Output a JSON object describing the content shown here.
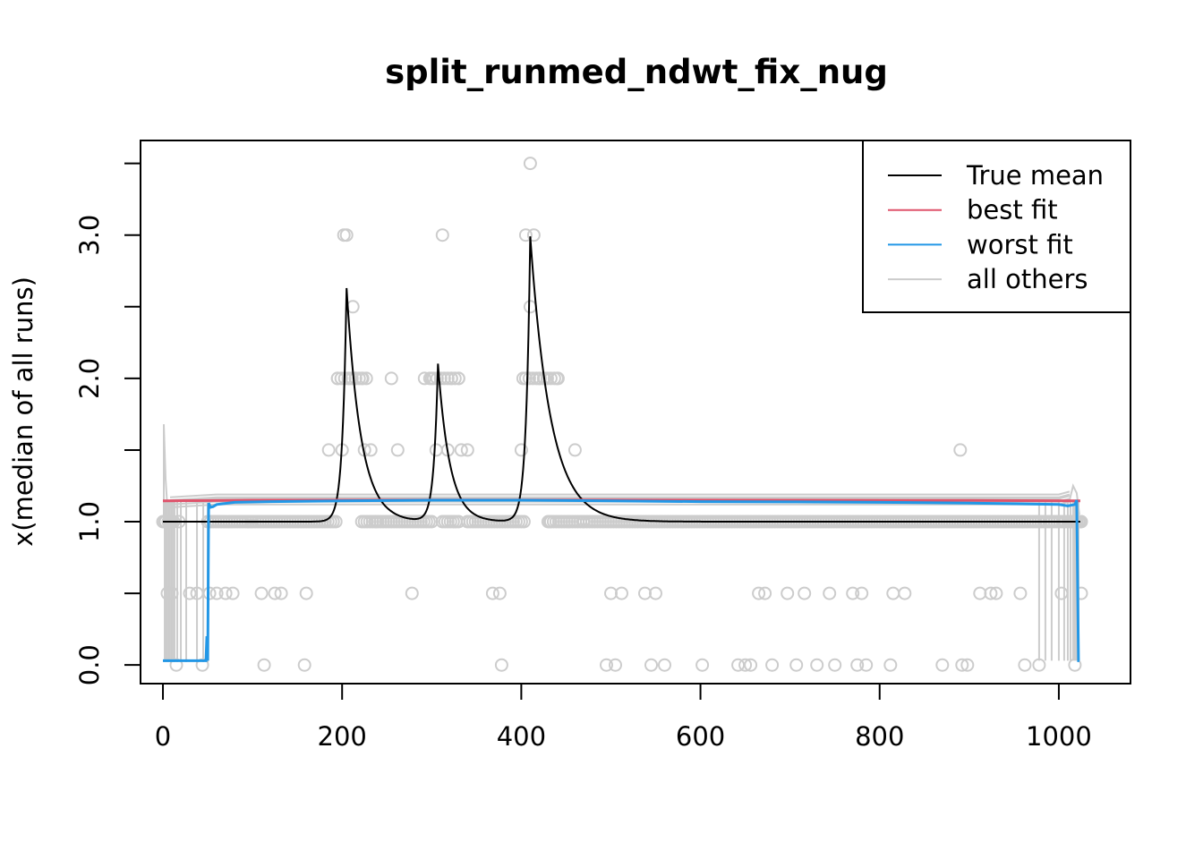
{
  "chart_data": {
    "type": "line",
    "title": "split_runmed_ndwt_fix_nug",
    "xlabel": "",
    "ylabel": "x(median of all runs)",
    "xlim": [
      -25,
      1080
    ],
    "ylim": [
      -0.13,
      3.66
    ],
    "x_ticks": [
      0,
      200,
      400,
      600,
      800,
      1000
    ],
    "x_tick_labels": [
      "0",
      "200",
      "400",
      "600",
      "800",
      "1000"
    ],
    "y_ticks": [
      0.0,
      0.5,
      1.0,
      1.5,
      2.0,
      2.5,
      3.0,
      3.5
    ],
    "y_tick_labels": [
      "0.0",
      "",
      "1.0",
      "",
      "2.0",
      "",
      "3.0",
      ""
    ],
    "legend": {
      "placement": "top-right",
      "entries": [
        {
          "label": "True mean",
          "color": "#000000"
        },
        {
          "label": "best fit",
          "color": "#DF536B"
        },
        {
          "label": "worst fit",
          "color": "#2297E6"
        },
        {
          "label": "all others",
          "color": "#CCCCCC"
        }
      ]
    },
    "series": [
      {
        "name": "True mean",
        "color": "#000000",
        "baseline": 1.0,
        "peaks": [
          {
            "x": 205,
            "height": 2.63,
            "rise": 15,
            "decay": 48
          },
          {
            "x": 307,
            "height": 2.1,
            "rise": 15,
            "decay": 40
          },
          {
            "x": 410,
            "height": 2.99,
            "rise": 15,
            "decay": 68
          }
        ]
      },
      {
        "name": "best fit",
        "color": "#DF536B",
        "x": [
          0,
          100,
          300,
          500,
          700,
          900,
          1024
        ],
        "y": [
          1.145,
          1.15,
          1.152,
          1.152,
          1.15,
          1.148,
          1.145
        ]
      },
      {
        "name": "worst fit",
        "color": "#2297E6",
        "x": [
          0,
          48,
          49,
          50,
          51,
          53,
          56,
          60,
          80,
          120,
          200,
          300,
          400,
          500,
          600,
          700,
          800,
          900,
          1000,
          1010,
          1018,
          1020,
          1022,
          1023
        ],
        "y": [
          0.03,
          0.03,
          0.2,
          0.03,
          1.13,
          1.1,
          1.105,
          1.12,
          1.135,
          1.14,
          1.145,
          1.15,
          1.15,
          1.145,
          1.14,
          1.138,
          1.135,
          1.13,
          1.12,
          1.11,
          1.12,
          1.15,
          0.03,
          0.03
        ]
      }
    ],
    "others": {
      "name": "all others",
      "color": "#CCCCCC",
      "points": [
        {
          "x": 2,
          "y": 1.0
        },
        {
          "x": 5,
          "y": 0.5
        },
        {
          "x": 8,
          "y": 1.0
        },
        {
          "x": 10,
          "y": 0.5
        },
        {
          "x": 15,
          "y": 0.0
        },
        {
          "x": 18,
          "y": 1.0
        },
        {
          "x": 30,
          "y": 0.5
        },
        {
          "x": 38,
          "y": 0.5
        },
        {
          "x": 44,
          "y": 0.0
        },
        {
          "x": 52,
          "y": 0.5
        },
        {
          "x": 60,
          "y": 0.5
        },
        {
          "x": 70,
          "y": 0.5
        },
        {
          "x": 78,
          "y": 0.5
        },
        {
          "x": 95,
          "y": 1.0
        },
        {
          "x": 110,
          "y": 0.5
        },
        {
          "x": 113,
          "y": 0.0
        },
        {
          "x": 125,
          "y": 0.5
        },
        {
          "x": 132,
          "y": 0.5
        },
        {
          "x": 158,
          "y": 0.0
        },
        {
          "x": 160,
          "y": 0.5
        },
        {
          "x": 185,
          "y": 1.5
        },
        {
          "x": 195,
          "y": 2.0
        },
        {
          "x": 200,
          "y": 1.5
        },
        {
          "x": 202,
          "y": 3.0
        },
        {
          "x": 205,
          "y": 3.0
        },
        {
          "x": 208,
          "y": 2.0
        },
        {
          "x": 212,
          "y": 2.5
        },
        {
          "x": 215,
          "y": 2.0
        },
        {
          "x": 222,
          "y": 2.0
        },
        {
          "x": 225,
          "y": 1.5
        },
        {
          "x": 232,
          "y": 1.5
        },
        {
          "x": 238,
          "y": 1.0
        },
        {
          "x": 255,
          "y": 2.0
        },
        {
          "x": 262,
          "y": 1.5
        },
        {
          "x": 278,
          "y": 0.5
        },
        {
          "x": 292,
          "y": 2.0
        },
        {
          "x": 300,
          "y": 2.0
        },
        {
          "x": 305,
          "y": 1.5
        },
        {
          "x": 312,
          "y": 3.0
        },
        {
          "x": 318,
          "y": 1.5
        },
        {
          "x": 322,
          "y": 2.0
        },
        {
          "x": 330,
          "y": 2.0
        },
        {
          "x": 333,
          "y": 1.5
        },
        {
          "x": 340,
          "y": 1.5
        },
        {
          "x": 368,
          "y": 0.5
        },
        {
          "x": 376,
          "y": 0.5
        },
        {
          "x": 378,
          "y": 0.0
        },
        {
          "x": 400,
          "y": 1.5
        },
        {
          "x": 402,
          "y": 2.0
        },
        {
          "x": 405,
          "y": 3.0
        },
        {
          "x": 410,
          "y": 3.5
        },
        {
          "x": 410,
          "y": 2.5
        },
        {
          "x": 414,
          "y": 3.0
        },
        {
          "x": 420,
          "y": 2.0
        },
        {
          "x": 426,
          "y": 2.0
        },
        {
          "x": 432,
          "y": 1.0
        },
        {
          "x": 440,
          "y": 2.0
        },
        {
          "x": 460,
          "y": 1.5
        },
        {
          "x": 495,
          "y": 0.0
        },
        {
          "x": 500,
          "y": 0.5
        },
        {
          "x": 505,
          "y": 0.0
        },
        {
          "x": 512,
          "y": 0.5
        },
        {
          "x": 538,
          "y": 0.5
        },
        {
          "x": 545,
          "y": 0.0
        },
        {
          "x": 550,
          "y": 0.5
        },
        {
          "x": 560,
          "y": 0.0
        },
        {
          "x": 602,
          "y": 0.0
        },
        {
          "x": 642,
          "y": 0.0
        },
        {
          "x": 650,
          "y": 0.0
        },
        {
          "x": 656,
          "y": 0.0
        },
        {
          "x": 665,
          "y": 0.5
        },
        {
          "x": 672,
          "y": 0.5
        },
        {
          "x": 680,
          "y": 0.0
        },
        {
          "x": 697,
          "y": 0.5
        },
        {
          "x": 707,
          "y": 0.0
        },
        {
          "x": 716,
          "y": 0.5
        },
        {
          "x": 730,
          "y": 0.0
        },
        {
          "x": 744,
          "y": 0.5
        },
        {
          "x": 750,
          "y": 0.0
        },
        {
          "x": 770,
          "y": 0.5
        },
        {
          "x": 775,
          "y": 0.0
        },
        {
          "x": 780,
          "y": 0.5
        },
        {
          "x": 785,
          "y": 0.0
        },
        {
          "x": 812,
          "y": 0.0
        },
        {
          "x": 815,
          "y": 0.5
        },
        {
          "x": 828,
          "y": 0.5
        },
        {
          "x": 870,
          "y": 0.0
        },
        {
          "x": 890,
          "y": 1.5
        },
        {
          "x": 892,
          "y": 0.0
        },
        {
          "x": 898,
          "y": 0.0
        },
        {
          "x": 912,
          "y": 0.5
        },
        {
          "x": 924,
          "y": 0.5
        },
        {
          "x": 930,
          "y": 0.5
        },
        {
          "x": 957,
          "y": 0.5
        },
        {
          "x": 962,
          "y": 0.0
        },
        {
          "x": 978,
          "y": 0.0
        },
        {
          "x": 1003,
          "y": 0.5
        },
        {
          "x": 1015,
          "y": 1.0
        },
        {
          "x": 1018,
          "y": 0.0
        },
        {
          "x": 1025,
          "y": 0.5
        },
        {
          "x": 1024,
          "y": 1.0
        }
      ],
      "band_lines": [
        1.19,
        1.17,
        1.16,
        1.14,
        1.12
      ],
      "start_spike": 1.68,
      "end_spike": 1.25
    }
  }
}
